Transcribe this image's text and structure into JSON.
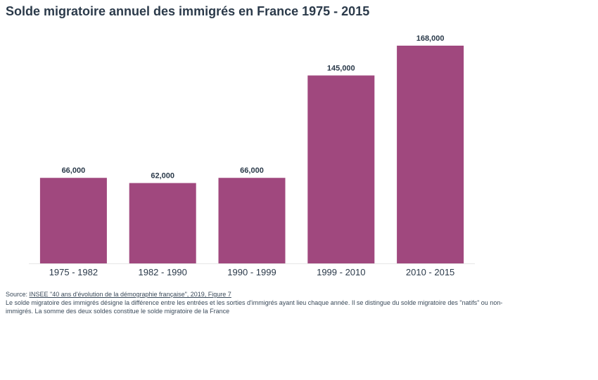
{
  "title": "Solde migratoire annuel des immigrés en France 1975 - 2015",
  "footer": {
    "source_prefix": "Source: ",
    "source_link": "INSEE \"40 ans d'évolution de la démographie française\", 2019, Figure 7",
    "note": "Le solde migratoire des immigrés désigne la différence entre les entrées et les sorties d'immigrés ayant lieu chaque année. Il se distingue du solde migratoire des \"natifs\" ou non-immigrés. La somme des deux soldes constitue le solde migratoire de la France"
  },
  "colors": {
    "bar": "#a0487e",
    "label": "#2b3a4a",
    "axis": "#e6e6e6"
  },
  "chart_data": {
    "type": "bar",
    "title": "Solde migratoire annuel des immigrés en France 1975 - 2015",
    "categories": [
      "1975 - 1982",
      "1982 - 1990",
      "1990 - 1999",
      "1999 - 2010",
      "2010 - 2015"
    ],
    "values": [
      66000,
      62000,
      66000,
      145000,
      168000
    ],
    "value_labels": [
      "66,000",
      "62,000",
      "66,000",
      "145,000",
      "168,000"
    ],
    "xlabel": "",
    "ylabel": "",
    "ylim": [
      0,
      168000
    ],
    "grid": false,
    "legend": "none"
  }
}
